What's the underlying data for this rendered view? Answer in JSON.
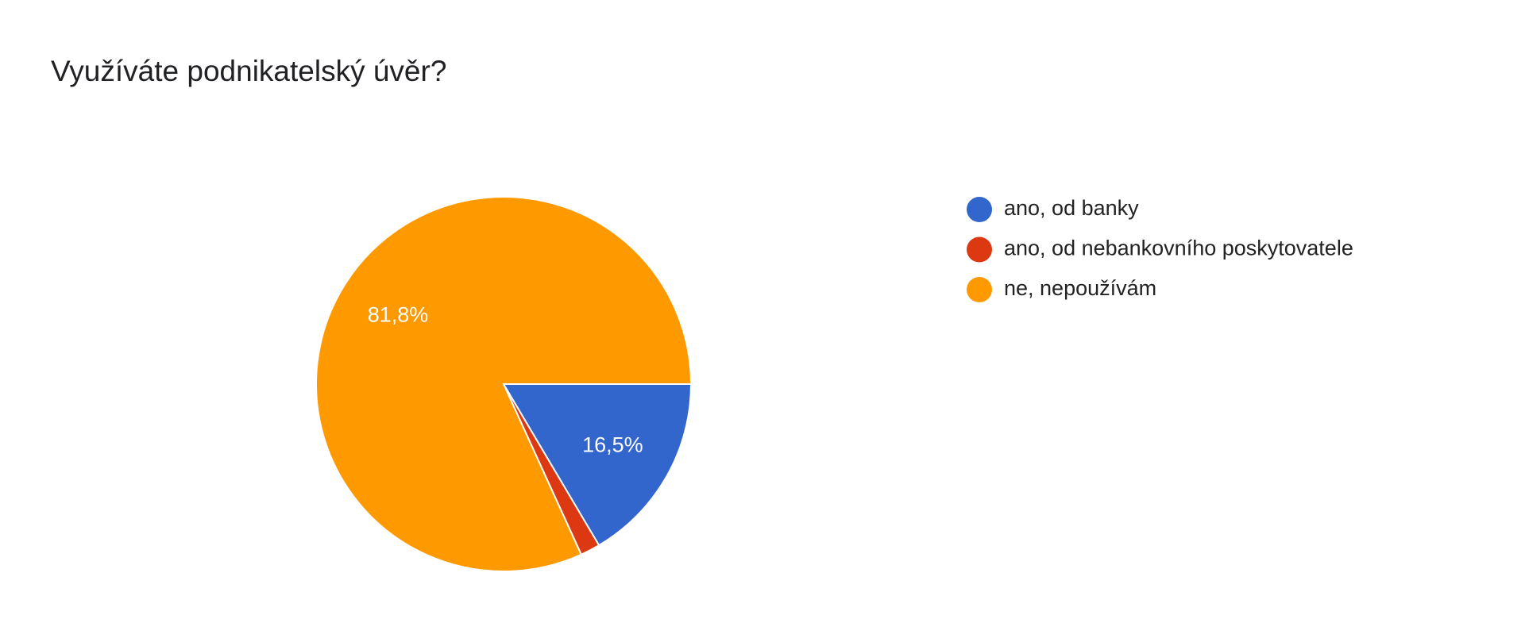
{
  "chart_data": {
    "type": "pie",
    "title": "Využíváte podnikatelský úvěr?",
    "categories": [
      "ano, od banky",
      "ano, od nebankovního poskytovatele",
      "ne, nepoužívám"
    ],
    "values": [
      16.5,
      1.7,
      81.8
    ],
    "value_labels": [
      "16,5%",
      null,
      "81,8%"
    ],
    "colors": [
      "#3366cc",
      "#dc3912",
      "#ff9900"
    ],
    "legend": "right"
  }
}
